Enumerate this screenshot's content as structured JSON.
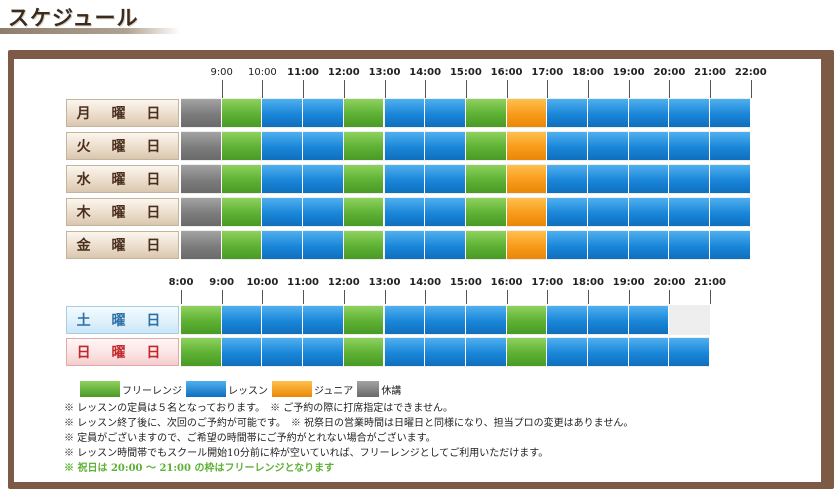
{
  "page": {
    "title": "スケジュール"
  },
  "hours_top": [
    "9:00",
    "10:00",
    "11:00",
    "12:00",
    "13:00",
    "14:00",
    "15:00",
    "16:00",
    "17:00",
    "18:00",
    "19:00",
    "20:00",
    "21:00",
    "22:00"
  ],
  "hours_bottom": [
    "8:00",
    "9:00",
    "10:00",
    "11:00",
    "12:00",
    "13:00",
    "14:00",
    "15:00",
    "16:00",
    "17:00",
    "18:00",
    "19:00",
    "20:00",
    "21:00"
  ],
  "weekdays": [
    {
      "label": "月 曜 日",
      "segments": [
        "closed",
        "free",
        "lesson",
        "lesson",
        "free",
        "lesson",
        "lesson",
        "free",
        "junior",
        "lesson",
        "lesson",
        "lesson",
        "lesson",
        "lesson"
      ]
    },
    {
      "label": "火 曜 日",
      "segments": [
        "closed",
        "free",
        "lesson",
        "lesson",
        "free",
        "lesson",
        "lesson",
        "free",
        "junior",
        "lesson",
        "lesson",
        "lesson",
        "lesson",
        "lesson"
      ]
    },
    {
      "label": "水 曜 日",
      "segments": [
        "closed",
        "free",
        "lesson",
        "lesson",
        "free",
        "lesson",
        "lesson",
        "free",
        "junior",
        "lesson",
        "lesson",
        "lesson",
        "lesson",
        "lesson"
      ]
    },
    {
      "label": "木 曜 日",
      "segments": [
        "closed",
        "free",
        "lesson",
        "lesson",
        "free",
        "lesson",
        "lesson",
        "free",
        "junior",
        "lesson",
        "lesson",
        "lesson",
        "lesson",
        "lesson"
      ]
    },
    {
      "label": "金 曜 日",
      "segments": [
        "closed",
        "free",
        "lesson",
        "lesson",
        "free",
        "lesson",
        "lesson",
        "free",
        "junior",
        "lesson",
        "lesson",
        "lesson",
        "lesson",
        "lesson"
      ]
    }
  ],
  "weekend": [
    {
      "label": "土 曜 日",
      "segments": [
        "free",
        "lesson",
        "lesson",
        "lesson",
        "free",
        "lesson",
        "lesson",
        "lesson",
        "free",
        "lesson",
        "lesson",
        "lesson"
      ]
    },
    {
      "label": "日 曜 日",
      "segments": [
        "free",
        "lesson",
        "lesson",
        "lesson",
        "free",
        "lesson",
        "lesson",
        "lesson",
        "free",
        "lesson",
        "lesson",
        "lesson",
        "lesson"
      ]
    }
  ],
  "legend": [
    {
      "key": "free",
      "label": "フリーレンジ"
    },
    {
      "key": "lesson",
      "label": "レッスン"
    },
    {
      "key": "junior",
      "label": "ジュニア"
    },
    {
      "key": "closed",
      "label": "休講"
    }
  ],
  "colors": {
    "free": "#5db134",
    "lesson": "#1a86d8",
    "junior": "#f89a1a",
    "closed": "#7c7c7c",
    "frame": "#7c5a45"
  },
  "notes": [
    "※ レッスンの定員は５名となっております。　※ ご予約の際に打席指定はできません。",
    "※ レッスン終了後に、次回のご予約が可能です。　※ 祝祭日の営業時間は日曜日と同様になり、担当プロの変更はありません。",
    "※ 定員がございますので、ご希望の時間帯にご予約がとれない場合がございます。",
    "※ レッスン時間帯でもスクール開始10分前に枠が空いていれば、フリーレンジとしてご利用いただけます。",
    "※ 祝日は 20:00 ～ 21:00 の枠はフリーレンジとなります"
  ]
}
